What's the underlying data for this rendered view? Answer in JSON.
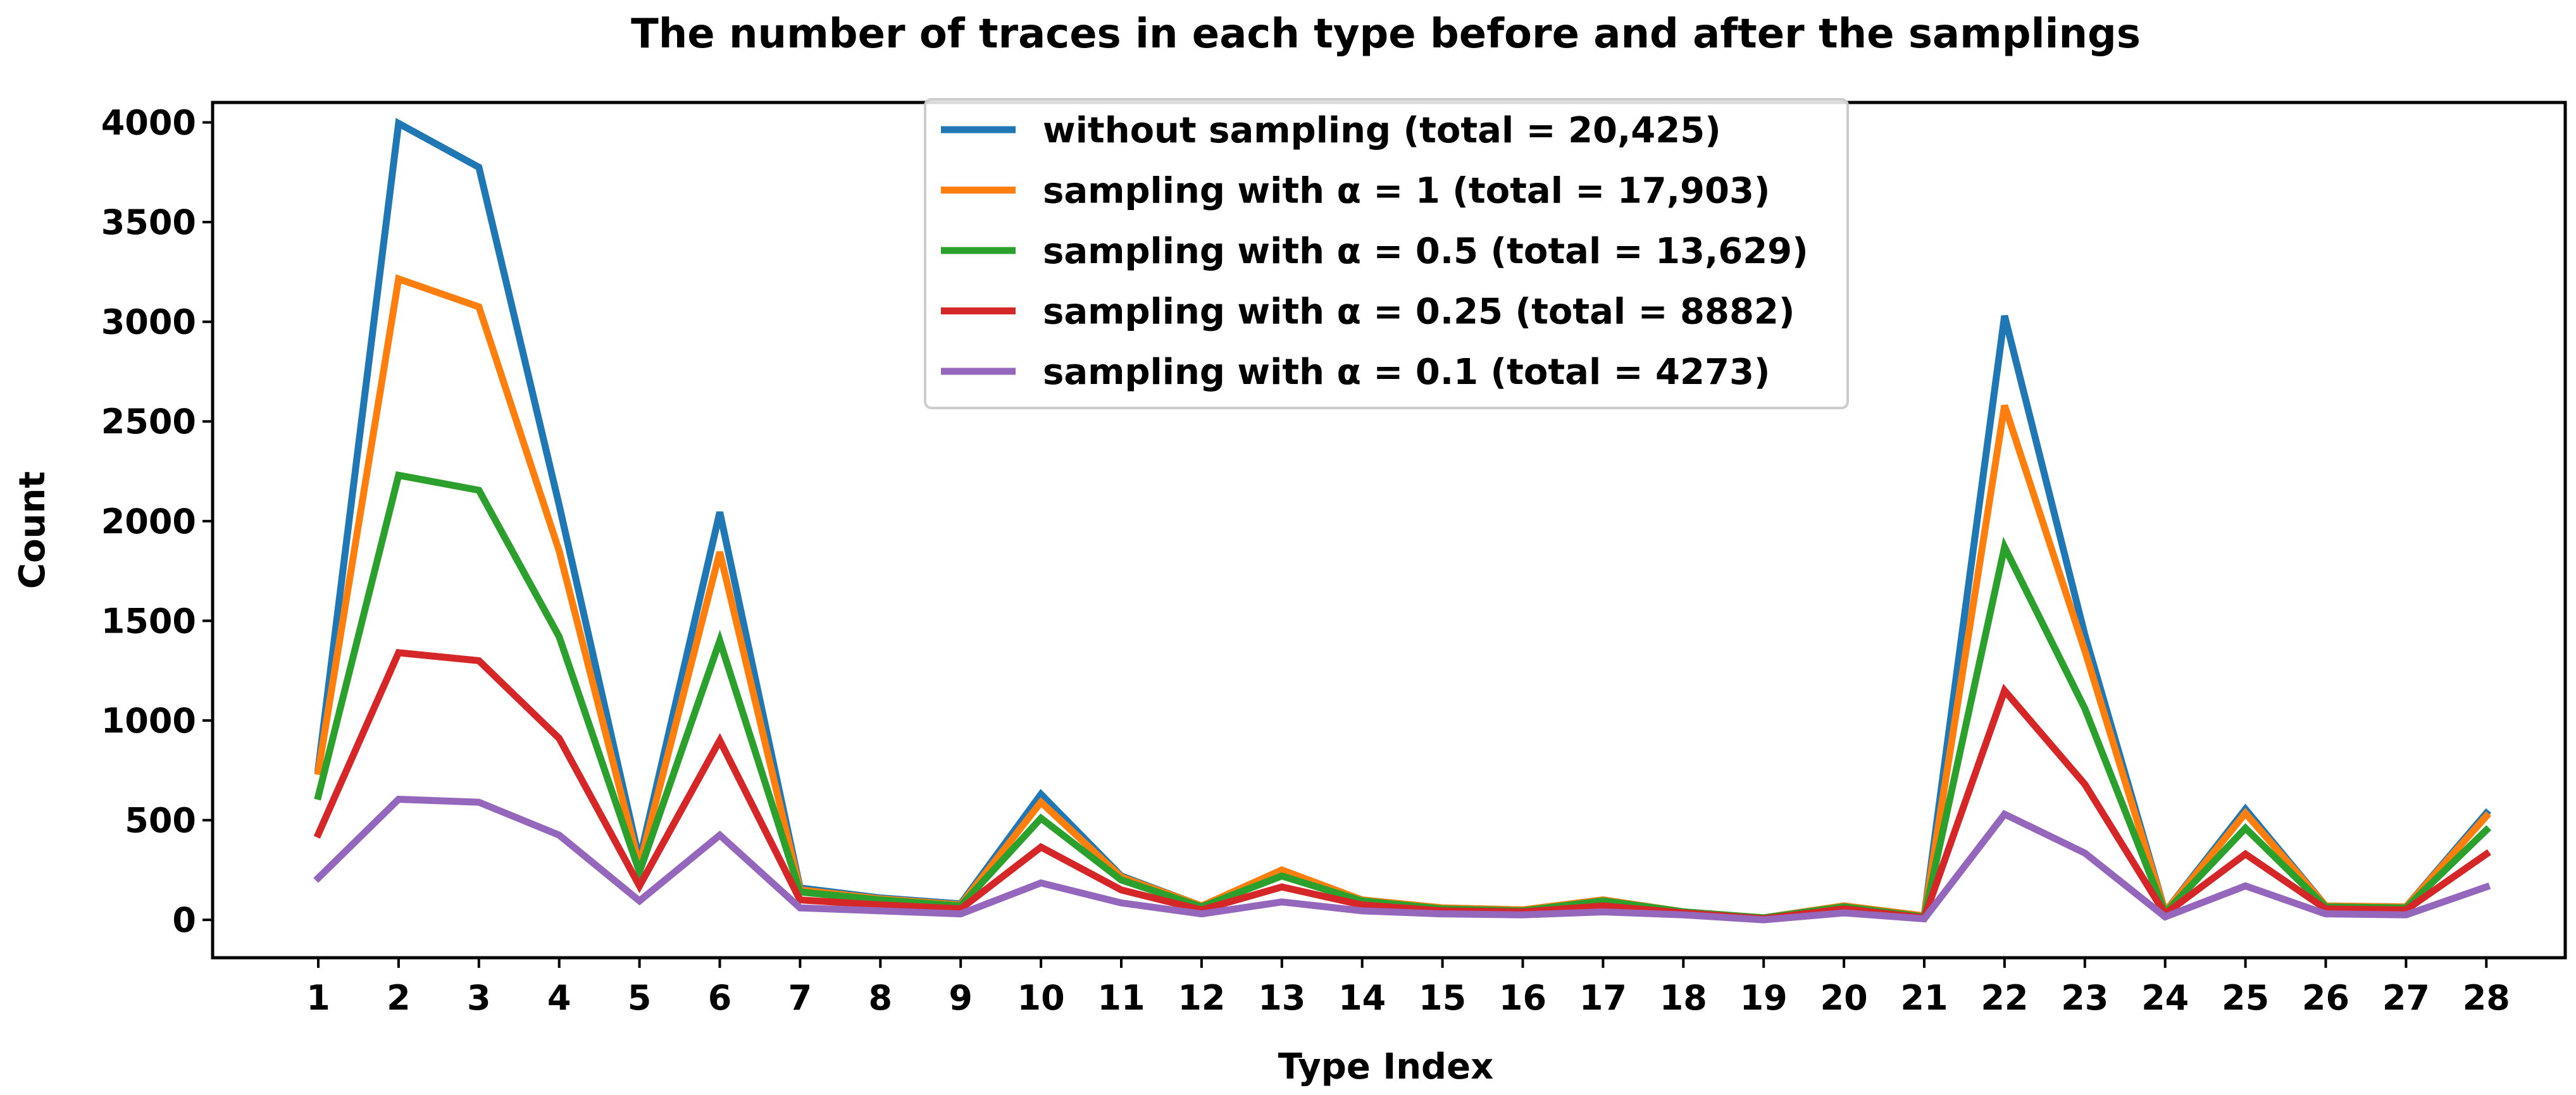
{
  "chart_data": {
    "type": "line",
    "title": "The number of traces in each type before and after the samplings",
    "xlabel": "Type Index",
    "ylabel": "Count",
    "ylim": [
      -190,
      4100
    ],
    "yticks": [
      0,
      500,
      1000,
      1500,
      2000,
      2500,
      3000,
      3500,
      4000
    ],
    "grid": false,
    "legend_position": "top-center",
    "x": [
      1,
      2,
      3,
      4,
      5,
      6,
      7,
      8,
      9,
      10,
      11,
      12,
      13,
      14,
      15,
      16,
      17,
      18,
      19,
      20,
      21,
      22,
      23,
      24,
      25,
      26,
      27,
      28
    ],
    "series": [
      {
        "name": "without sampling (total = 20,425)",
        "color": "#1f77b4",
        "values": [
          760,
          3995,
          3775,
          2080,
          300,
          2045,
          160,
          110,
          80,
          630,
          220,
          70,
          240,
          100,
          60,
          50,
          100,
          40,
          10,
          70,
          20,
          3030,
          1430,
          40,
          555,
          70,
          65,
          535
        ]
      },
      {
        "name": "sampling with α = 1 (total = 17,903)",
        "color": "#ff7f0e",
        "values": [
          745,
          3215,
          3075,
          1850,
          270,
          1845,
          150,
          105,
          75,
          590,
          215,
          70,
          250,
          100,
          60,
          50,
          100,
          40,
          10,
          70,
          20,
          2580,
          1350,
          40,
          535,
          70,
          65,
          520
        ]
      },
      {
        "name": "sampling with α = 0.5 (total = 13,629)",
        "color": "#2ca02c",
        "values": [
          620,
          2230,
          2155,
          1420,
          240,
          1400,
          140,
          100,
          70,
          510,
          200,
          65,
          220,
          95,
          55,
          45,
          95,
          40,
          10,
          65,
          15,
          1870,
          1060,
          35,
          460,
          65,
          60,
          450
        ]
      },
      {
        "name": "sampling with α = 0.25 (total = 8882)",
        "color": "#d62728",
        "values": [
          430,
          1340,
          1300,
          910,
          170,
          900,
          100,
          75,
          55,
          365,
          150,
          50,
          165,
          75,
          45,
          40,
          70,
          35,
          5,
          55,
          10,
          1150,
          680,
          30,
          330,
          55,
          50,
          330
        ]
      },
      {
        "name": "sampling with α = 0.1 (total = 4273)",
        "color": "#9467bd",
        "values": [
          210,
          605,
          590,
          425,
          95,
          425,
          60,
          45,
          30,
          185,
          85,
          30,
          90,
          45,
          30,
          25,
          40,
          25,
          0,
          35,
          5,
          530,
          335,
          15,
          170,
          30,
          25,
          165
        ]
      }
    ]
  }
}
